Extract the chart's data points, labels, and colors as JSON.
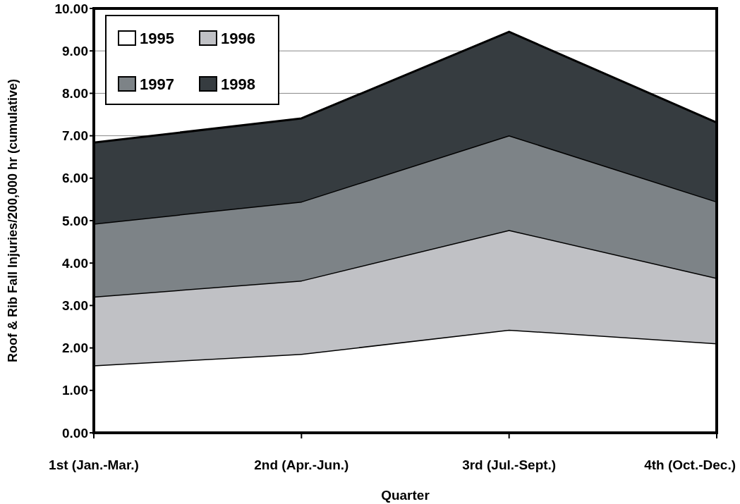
{
  "chart_data": {
    "type": "area",
    "stacked": true,
    "xlabel": "Quarter",
    "ylabel": "Roof & Rib Fall Injuries/200,000 hr (cumulative)",
    "categories": [
      "1st (Jan.-Mar.)",
      "2nd (Apr.-Jun.)",
      "3rd  (Jul.-Sept.)",
      "4th (Oct.-Dec.)"
    ],
    "series": [
      {
        "name": "1995",
        "color": "#ffffff",
        "values": [
          1.59,
          1.86,
          2.43,
          2.11
        ]
      },
      {
        "name": "1996",
        "color": "#c0c1c5",
        "values": [
          1.62,
          1.73,
          2.35,
          1.54
        ]
      },
      {
        "name": "1997",
        "color": "#7d8387",
        "values": [
          1.72,
          1.86,
          2.23,
          1.8
        ]
      },
      {
        "name": "1998",
        "color": "#363c40",
        "values": [
          1.91,
          1.96,
          2.44,
          1.86
        ]
      }
    ],
    "ylim": [
      0,
      10
    ],
    "yticks": [
      {
        "value": 0,
        "label": "0.00"
      },
      {
        "value": 1,
        "label": "1.00"
      },
      {
        "value": 2,
        "label": "2.00"
      },
      {
        "value": 3,
        "label": "3.00"
      },
      {
        "value": 4,
        "label": "4.00"
      },
      {
        "value": 5,
        "label": "5.00"
      },
      {
        "value": 6,
        "label": "6.00"
      },
      {
        "value": 7,
        "label": "7.00"
      },
      {
        "value": 8,
        "label": "8.00"
      },
      {
        "value": 9,
        "label": "9.00"
      },
      {
        "value": 10,
        "label": "10.00"
      }
    ],
    "grid": "y",
    "legend": "top left"
  }
}
